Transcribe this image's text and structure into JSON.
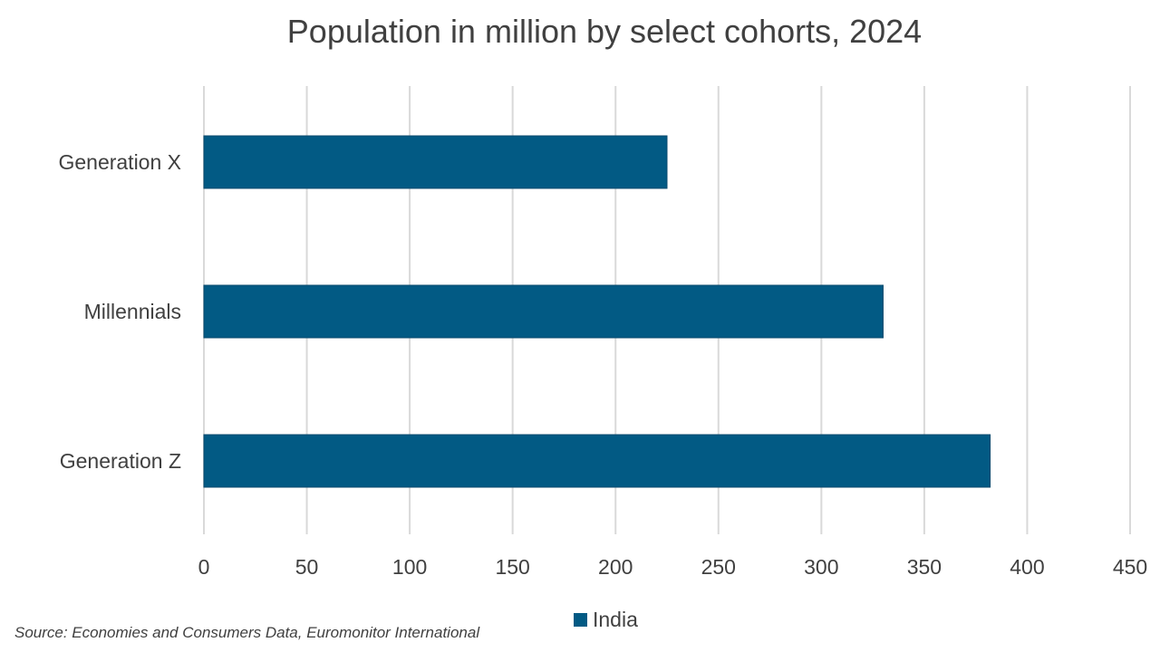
{
  "chart_data": {
    "type": "bar",
    "orientation": "horizontal",
    "title": "Population in million by select cohorts, 2024",
    "categories": [
      "Generation X",
      "Millennials",
      "Generation Z"
    ],
    "series": [
      {
        "name": "India",
        "values": [
          225,
          330,
          382
        ],
        "color": "#025a84"
      }
    ],
    "xlim": [
      0,
      450
    ],
    "xticks": [
      0,
      50,
      100,
      150,
      200,
      250,
      300,
      350,
      400,
      450
    ],
    "xlabel": "",
    "ylabel": "",
    "grid": true,
    "legend_position": "bottom"
  },
  "source": "Source: Economies and Consumers Data, Euromonitor International"
}
